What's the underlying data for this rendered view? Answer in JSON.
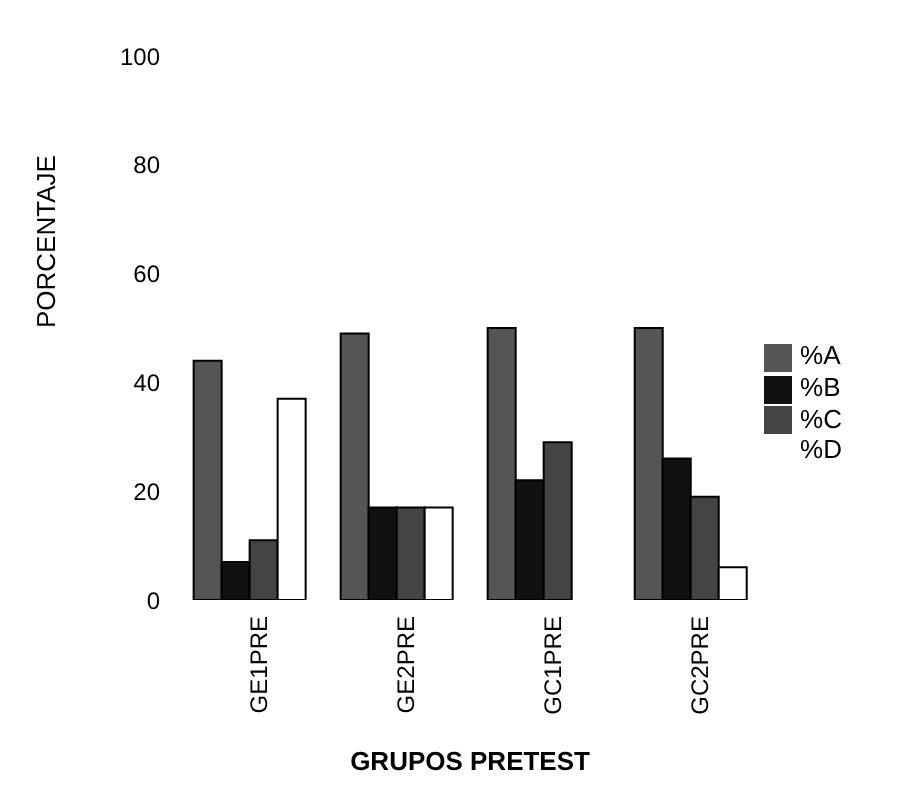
{
  "chart_data": {
    "type": "bar",
    "xlabel": "GRUPOS PRETEST",
    "ylabel": "PORCENTAJE",
    "categories": [
      "GE1PRE",
      "GE2PRE",
      "GC1PRE",
      "GC2PRE"
    ],
    "series": [
      {
        "name": "%A",
        "color": "#555555",
        "values": [
          44,
          49,
          50,
          50
        ]
      },
      {
        "name": "%B",
        "color": "#111111",
        "values": [
          7,
          17,
          22,
          26
        ]
      },
      {
        "name": "%C",
        "color": "#444444",
        "values": [
          11,
          17,
          29,
          19
        ]
      },
      {
        "name": "%D",
        "color": "#ffffff",
        "values": [
          37,
          17,
          0,
          6
        ]
      }
    ],
    "ylim": [
      0,
      100
    ],
    "yticks": [
      0,
      20,
      40,
      60,
      80,
      100
    ],
    "grid": false,
    "legend": "right"
  }
}
